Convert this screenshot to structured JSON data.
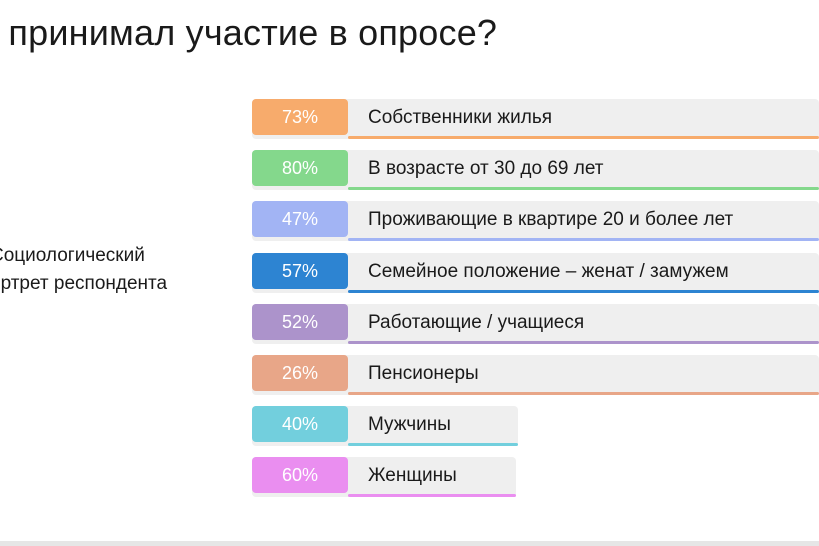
{
  "title": "о принимал участие в опросе?",
  "side_label": {
    "line1": "Социологический",
    "line2": "ортрет респондента"
  },
  "rows": [
    {
      "percent": "73%",
      "label": "Собственники жилья",
      "color": "#f7ab6c"
    },
    {
      "percent": "80%",
      "label": "В возрасте от 30 до 69 лет",
      "color": "#84d88c"
    },
    {
      "percent": "47%",
      "label": "Проживающие в квартире 20 и более лет",
      "color": "#a2b4f4"
    },
    {
      "percent": "57%",
      "label": "Семейное положение – женат / замужем",
      "color": "#2d84d2"
    },
    {
      "percent": "52%",
      "label": "Работающие / учащиеся",
      "color": "#ac93cb"
    },
    {
      "percent": "26%",
      "label": "Пенсионеры",
      "color": "#e8a688"
    },
    {
      "percent": "40%",
      "label": "Мужчины",
      "color": "#72cfdd"
    },
    {
      "percent": "60%",
      "label": "Женщины",
      "color": "#ea8ef0"
    }
  ]
}
